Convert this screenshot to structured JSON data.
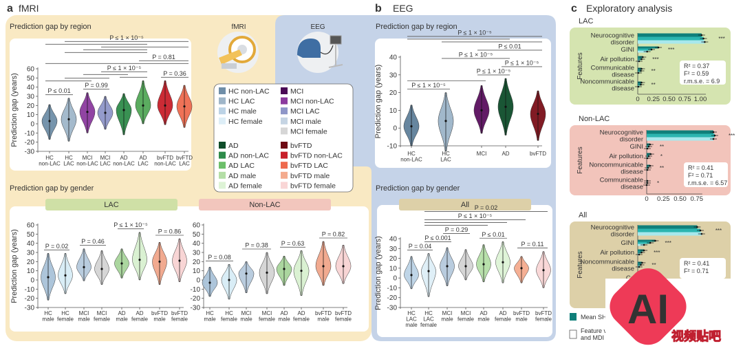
{
  "panels": {
    "a": {
      "letter": "a",
      "title": "fMRI",
      "region_subtitle": "Prediction gap by region",
      "gender_subtitle": "Prediction gap by gender",
      "icon_label": "fMRI",
      "icon": "mri-scanner-icon",
      "bg_color": "#f9e9c3"
    },
    "b": {
      "letter": "b",
      "title": "EEG",
      "region_subtitle": "Prediction gap by region",
      "gender_subtitle": "Prediction gap by gender",
      "icon_label": "EEG",
      "icon": "eeg-headset-icon",
      "bg_color": "#c5d3e8"
    },
    "c": {
      "letter": "c",
      "title": "Exploratory analysis"
    }
  },
  "legend": {
    "items": [
      {
        "label": "HC non-LAC",
        "color": "#6f8ea8"
      },
      {
        "label": "HC LAC",
        "color": "#9fb6c9"
      },
      {
        "label": "HC male",
        "color": "#bcd3e6"
      },
      {
        "label": "HC female",
        "color": "#ddeef7"
      },
      {
        "label": "MCI",
        "color": "#4a0a55"
      },
      {
        "label": "MCI non-LAC",
        "color": "#8b3a9e"
      },
      {
        "label": "MCI LAC",
        "color": "#8e96c8"
      },
      {
        "label": "MCI male",
        "color": "#c5d4e3"
      },
      {
        "label": "MCI female",
        "color": "#d6d6d6"
      },
      {
        "label": "AD",
        "color": "#0e4d2a"
      },
      {
        "label": "AD non-LAC",
        "color": "#2e8b4a"
      },
      {
        "label": "AD LAC",
        "color": "#6cbf6a"
      },
      {
        "label": "AD male",
        "color": "#b4dea6"
      },
      {
        "label": "AD female",
        "color": "#ddf3d6"
      },
      {
        "label": "bvFTD",
        "color": "#6e0a14"
      },
      {
        "label": "bvFTD non-LAC",
        "color": "#c8202a"
      },
      {
        "label": "bvFTD LAC",
        "color": "#ee6a4e"
      },
      {
        "label": "bvFTD male",
        "color": "#f4ab8e"
      },
      {
        "label": "bvFTD female",
        "color": "#f9d6d6"
      }
    ]
  },
  "gender_headers": {
    "lac": {
      "label": "LAC",
      "color": "#cfe0a6"
    },
    "nonlac": {
      "label": "Non-LAC",
      "color": "#f2c6bd"
    },
    "all": {
      "label": "All",
      "color": "#ddd0a8"
    }
  },
  "chart_data": [
    {
      "id": "a_region",
      "type": "violin",
      "title": "Prediction gap by region",
      "ylabel": "Prediction gap (years)",
      "ylim": [
        -30,
        60
      ],
      "yticks": [
        60,
        50,
        40,
        30,
        20,
        10,
        0,
        -10,
        -20,
        -30
      ],
      "categories": [
        [
          "HC",
          "non-LAC"
        ],
        [
          "HC",
          "LAC"
        ],
        [
          "MCI",
          "non-LAC"
        ],
        [
          "MCI",
          "LAC"
        ],
        [
          "AD",
          "non-LAC"
        ],
        [
          "AD",
          "LAC"
        ],
        [
          "bvFTD",
          "non-LAC"
        ],
        [
          "bvFTD",
          "LAC"
        ]
      ],
      "violins": [
        {
          "median": 3,
          "min": -17,
          "max": 21,
          "color": "#6f8ea8"
        },
        {
          "median": 5,
          "min": -19,
          "max": 28,
          "color": "#9fb6c9"
        },
        {
          "median": 13,
          "min": -10,
          "max": 34,
          "color": "#8b3a9e"
        },
        {
          "median": 12,
          "min": -6,
          "max": 30,
          "color": "#8e96c8"
        },
        {
          "median": 15,
          "min": -12,
          "max": 33,
          "color": "#2e8b4a"
        },
        {
          "median": 20,
          "min": 0,
          "max": 47,
          "color": "#52a857"
        },
        {
          "median": 20,
          "min": -1,
          "max": 47,
          "color": "#c8202a"
        },
        {
          "median": 19,
          "min": -4,
          "max": 42,
          "color": "#ee6a4e"
        }
      ],
      "comparisons": [
        {
          "from": 0,
          "to": 1,
          "label": "P ≤ 0.01"
        },
        {
          "from": 2,
          "to": 3,
          "label": "P = 0.99"
        },
        {
          "from": 6,
          "to": 7,
          "label": "P = 0.36"
        },
        {
          "from": 0,
          "to": 2,
          "label": ""
        },
        {
          "from": 1,
          "to": 3,
          "label": ""
        },
        {
          "from": 4,
          "to": 5,
          "label": ""
        },
        {
          "from": 2,
          "to": 4,
          "label": ""
        },
        {
          "from": 3,
          "to": 5,
          "label": "P ≤ 1 × 10⁻⁵"
        },
        {
          "from": 0,
          "to": 7,
          "label": ""
        },
        {
          "from": 5,
          "to": 7,
          "label": "P = 0.81"
        },
        {
          "from": 1,
          "to": 5,
          "label": ""
        },
        {
          "from": 2,
          "to": 5,
          "label": ""
        },
        {
          "from": 3,
          "to": 7,
          "label": ""
        },
        {
          "from": 0,
          "to": 5,
          "label": ""
        },
        {
          "from": 1,
          "to": 7,
          "label": "P ≤ 1 × 10⁻⁵"
        }
      ]
    },
    {
      "id": "a_gender_lac",
      "type": "violin",
      "header": "LAC",
      "ylabel": "Prediction gap (years)",
      "ylim": [
        -30,
        60
      ],
      "yticks": [
        60,
        50,
        40,
        30,
        20,
        10,
        0,
        -10,
        -20,
        -30
      ],
      "categories": [
        [
          "HC",
          "male"
        ],
        [
          "HC",
          "female"
        ],
        [
          "MCI",
          "male"
        ],
        [
          "MCI",
          "female"
        ],
        [
          "AD",
          "male"
        ],
        [
          "AD",
          "female"
        ],
        [
          "bvFTD",
          "male"
        ],
        [
          "bvFTD",
          "female"
        ]
      ],
      "violins": [
        {
          "median": 3,
          "min": -22,
          "max": 29,
          "color": "#a9c2d8"
        },
        {
          "median": 5,
          "min": -15,
          "max": 29,
          "color": "#d7ecf5"
        },
        {
          "median": 14,
          "min": -1,
          "max": 34,
          "color": "#b5c9dc"
        },
        {
          "median": 12,
          "min": -5,
          "max": 32,
          "color": "#d4d4d4"
        },
        {
          "median": 18,
          "min": 2,
          "max": 34,
          "color": "#a6d49a"
        },
        {
          "median": 22,
          "min": 0,
          "max": 52,
          "color": "#d8f0d0"
        },
        {
          "median": 20,
          "min": -5,
          "max": 41,
          "color": "#f0a58a"
        },
        {
          "median": 21,
          "min": -2,
          "max": 45,
          "color": "#f8d3d3"
        }
      ],
      "comparisons": [
        {
          "from": 0,
          "to": 1,
          "label": "P = 0.02"
        },
        {
          "from": 2,
          "to": 3,
          "label": "P = 0.46"
        },
        {
          "from": 4,
          "to": 5,
          "label": "P ≤ 1 × 10⁻⁵"
        },
        {
          "from": 6,
          "to": 7,
          "label": "P = 0.86"
        }
      ]
    },
    {
      "id": "a_gender_nonlac",
      "type": "violin",
      "header": "Non-LAC",
      "ylim": [
        -30,
        60
      ],
      "yticks": [
        60,
        50,
        40,
        30,
        20,
        10,
        0,
        -10,
        -20,
        -30
      ],
      "categories": [
        [
          "HC",
          "male"
        ],
        [
          "HC",
          "female"
        ],
        [
          "MCI",
          "male"
        ],
        [
          "MCI",
          "female"
        ],
        [
          "AD",
          "male"
        ],
        [
          "AD",
          "female"
        ],
        [
          "bvFTD",
          "male"
        ],
        [
          "bvFTD",
          "female"
        ]
      ],
      "violins": [
        {
          "median": -3,
          "min": -18,
          "max": 14,
          "color": "#a9c2d8"
        },
        {
          "median": 0,
          "min": -21,
          "max": 17,
          "color": "#d7ecf5"
        },
        {
          "median": 7,
          "min": -14,
          "max": 20,
          "color": "#b5c9dc"
        },
        {
          "median": 8,
          "min": -15,
          "max": 30,
          "color": "#d4d4d4"
        },
        {
          "median": 12,
          "min": -6,
          "max": 26,
          "color": "#a6d49a"
        },
        {
          "median": 10,
          "min": -17,
          "max": 32,
          "color": "#d8f0d0"
        },
        {
          "median": 15,
          "min": -6,
          "max": 42,
          "color": "#f0a58a"
        },
        {
          "median": 15,
          "min": -4,
          "max": 38,
          "color": "#f8d3d3"
        }
      ],
      "comparisons": [
        {
          "from": 0,
          "to": 1,
          "label": "P = 0.08"
        },
        {
          "from": 2,
          "to": 3,
          "label": "P = 0.38"
        },
        {
          "from": 4,
          "to": 5,
          "label": "P = 0.63"
        },
        {
          "from": 6,
          "to": 7,
          "label": "P = 0.82"
        }
      ]
    },
    {
      "id": "b_region",
      "type": "violin",
      "title": "Prediction gap by region",
      "ylabel": "Prediction gap (years)",
      "ylim": [
        -10,
        40
      ],
      "yticks": [
        40,
        30,
        20,
        10,
        0,
        -10
      ],
      "categories": [
        [
          "HC",
          "non-LAC"
        ],
        [
          "HC",
          "LAC"
        ],
        [
          "MCI"
        ],
        [
          "AD"
        ],
        [
          "bvFTD"
        ]
      ],
      "violins": [
        {
          "median": 1,
          "min": -10,
          "max": 13,
          "color": "#5f7f9a"
        },
        {
          "median": 4,
          "min": -13,
          "max": 20,
          "color": "#9cb4c8"
        },
        {
          "median": 10,
          "min": -3,
          "max": 24,
          "color": "#5a0f5e"
        },
        {
          "median": 12,
          "min": -4,
          "max": 28,
          "color": "#0e4d2a"
        },
        {
          "median": 8,
          "min": -7,
          "max": 21,
          "color": "#7a0f18"
        }
      ],
      "comparisons": [
        {
          "from": 0,
          "to": 1,
          "label": "P ≤ 1 × 10⁻⁵"
        },
        {
          "from": 2,
          "to": 3,
          "label": "P ≤ 1 × 10⁻⁵"
        },
        {
          "from": 3,
          "to": 4,
          "label": "P ≤ 1 × 10⁻⁵"
        },
        {
          "from": 1,
          "to": 3,
          "label": "P ≤ 1 × 10⁻⁵"
        },
        {
          "from": 2,
          "to": 4,
          "label": "P ≤ 0.01"
        },
        {
          "from": 0,
          "to": 2,
          "label": ""
        },
        {
          "from": 1,
          "to": 4,
          "label": ""
        },
        {
          "from": 0,
          "to": 3,
          "label": ""
        },
        {
          "from": 0,
          "to": 4,
          "label": "P ≤ 1 × 10⁻⁵"
        }
      ]
    },
    {
      "id": "b_gender_all",
      "type": "violin",
      "header": "All",
      "ylabel": "Prediction gap (years)",
      "ylim": [
        -30,
        40
      ],
      "yticks": [
        40,
        30,
        20,
        10,
        0,
        -10,
        -20,
        -30
      ],
      "categories": [
        [
          "HC",
          "LAC",
          "male"
        ],
        [
          "HC",
          "LAC",
          "female"
        ],
        [
          "MCI",
          "male"
        ],
        [
          "MCI",
          "female"
        ],
        [
          "AD",
          "male"
        ],
        [
          "AD",
          "female"
        ],
        [
          "bvFTD",
          "male"
        ],
        [
          "bvFTD",
          "female"
        ]
      ],
      "violins": [
        {
          "median": 3,
          "min": -11,
          "max": 22,
          "color": "#bcd3e6"
        },
        {
          "median": 7,
          "min": -19,
          "max": 25,
          "color": "#ddeef7"
        },
        {
          "median": 12,
          "min": -8,
          "max": 31,
          "color": "#b5c9dc"
        },
        {
          "median": 12,
          "min": -2,
          "max": 29,
          "color": "#d4d4d4"
        },
        {
          "median": 14,
          "min": -4,
          "max": 34,
          "color": "#b4dea6"
        },
        {
          "median": 16,
          "min": -5,
          "max": 37,
          "color": "#ddf3d6"
        },
        {
          "median": 10,
          "min": -5,
          "max": 22,
          "color": "#f4ab8e"
        },
        {
          "median": 8,
          "min": -10,
          "max": 27,
          "color": "#f9d6d6"
        }
      ],
      "comparisons": [
        {
          "from": 0,
          "to": 1,
          "label": "P = 0.04"
        },
        {
          "from": 1,
          "to": 2,
          "label": "P ≤ 0.001"
        },
        {
          "from": 2,
          "to": 3,
          "label": "P = 0.29"
        },
        {
          "from": 4,
          "to": 5,
          "label": "P ≤ 0.01"
        },
        {
          "from": 6,
          "to": 7,
          "label": "P = 0.11"
        },
        {
          "from": 1,
          "to": 4,
          "label": ""
        },
        {
          "from": 1,
          "to": 5,
          "label": ""
        },
        {
          "from": 1,
          "to": 6,
          "label": "P ≤ 1 × 10⁻⁵"
        },
        {
          "from": 1,
          "to": 7,
          "label": "P = 0.02"
        }
      ]
    },
    {
      "id": "c_lac",
      "type": "bar",
      "orientation": "horizontal",
      "title": "LAC",
      "ylabel": "Features",
      "bg_color": "#d5e4b0",
      "xticks": [
        "0",
        "0.25",
        "0.50",
        "0.75",
        "1.00"
      ],
      "xlim": [
        0,
        1.1
      ],
      "features": [
        [
          "Neurocognitive",
          "disorder"
        ],
        [
          "GINI"
        ],
        [
          "Air pollution"
        ],
        [
          "Communicable",
          "disease"
        ],
        [
          "Noncommunicable",
          "disease"
        ]
      ],
      "series_values": [
        [
          1.02,
          1.05,
          1.07
        ],
        [
          0.33,
          0.22,
          0.15
        ],
        [
          0.08,
          0.06,
          0.02
        ],
        [
          0.06,
          0.05,
          0.01
        ],
        [
          0.06,
          0.05,
          0.01
        ]
      ],
      "significance": [
        "***",
        "***",
        "***",
        "**",
        "**"
      ],
      "stats": [
        "R² = 0.37",
        "F² = 0.59",
        "r.m.s.e. = 6.9"
      ]
    },
    {
      "id": "c_nonlac",
      "type": "bar",
      "orientation": "horizontal",
      "title": "Non-LAC",
      "ylabel": "Features",
      "bg_color": "#f2c4bb",
      "xticks": [
        "0",
        "0.25",
        "0.50",
        "0.75"
      ],
      "xlim": [
        0,
        1.05
      ],
      "features": [
        [
          "Neurocognitive",
          "disorder"
        ],
        [
          "GINI"
        ],
        [
          "Air pollution"
        ],
        [
          "Noncommunicable",
          "disease"
        ],
        [
          "Communicable",
          "disease"
        ]
      ],
      "series_values": [
        [
          1.0,
          1.02,
          1.0
        ],
        [
          0.05,
          0.03,
          0.01
        ],
        [
          0.06,
          0.03,
          0.01
        ],
        [
          0.05,
          0.02,
          0.01
        ],
        [
          0.01,
          0.01,
          0.0
        ]
      ],
      "significance": [
        "***",
        "**",
        "*",
        "**",
        "*"
      ],
      "stats": [
        "R² = 0.41",
        "F² = 0.71",
        "r.m.s.e. = 6.57"
      ]
    },
    {
      "id": "c_all",
      "type": "bar",
      "orientation": "horizontal",
      "title": "All",
      "ylabel": "Features",
      "bg_color": "#ddd0a8",
      "xticks": [],
      "xlim": [
        0,
        1.1
      ],
      "features": [
        [
          "Neurocognitive",
          "disorder"
        ],
        [
          "GINI"
        ],
        [
          "Air pollution"
        ],
        [
          "Noncommunicable",
          "disease"
        ],
        [
          "Co"
        ]
      ],
      "series_values": [
        [
          0.95,
          1.0,
          1.02
        ],
        [
          0.28,
          0.2,
          0.1
        ],
        [
          0.1,
          0.06,
          0.02
        ],
        [
          0.07,
          0.05,
          0.02
        ],
        [
          0.02,
          0.01,
          0.0
        ]
      ],
      "significance": [
        "***",
        "***",
        "***",
        "**",
        ""
      ],
      "stats": [
        "R² = 0.41",
        "F² = 0.71"
      ]
    }
  ],
  "c_legend": {
    "items": [
      {
        "label": [
          "Mean SH"
        ],
        "color": "#0f7f7a"
      },
      {
        "label": [
          "Feature v",
          "and MDI"
        ],
        "color": "#ffffff"
      }
    ],
    "series_colors": [
      "#0f7f7a",
      "#2bb5b0",
      "#a8e8ec"
    ]
  },
  "watermark": {
    "text": "AI",
    "subtext": "视频贴吧",
    "color": "#ee3a57"
  }
}
